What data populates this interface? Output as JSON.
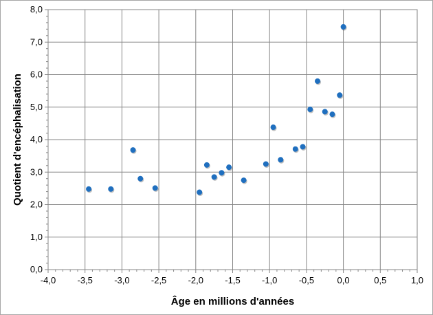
{
  "chart_data": {
    "type": "scatter",
    "title": "",
    "xlabel": "Âge en millions d'années",
    "ylabel": "Quotient d'encéphalisation",
    "xlim": [
      -4.0,
      1.0
    ],
    "ylim": [
      0.0,
      8.0
    ],
    "x_ticks": [
      -4.0,
      -3.5,
      -3.0,
      -2.5,
      -2.0,
      -1.5,
      -1.0,
      -0.5,
      0.0,
      0.5,
      1.0
    ],
    "y_ticks": [
      0.0,
      1.0,
      2.0,
      3.0,
      4.0,
      5.0,
      6.0,
      7.0,
      8.0
    ],
    "x_tick_labels": [
      "-4,0",
      "-3,5",
      "-3,0",
      "-2,5",
      "-2,0",
      "-1,5",
      "-1,0",
      "-0,5",
      "0,0",
      "0,5",
      "1,0"
    ],
    "y_tick_labels": [
      "0,0",
      "1,0",
      "2,0",
      "3,0",
      "4,0",
      "5,0",
      "6,0",
      "7,0",
      "8,0"
    ],
    "grid": true,
    "marker_color": "#1f6fbf",
    "points": [
      {
        "x": -3.45,
        "y": 2.48
      },
      {
        "x": -3.15,
        "y": 2.48
      },
      {
        "x": -2.85,
        "y": 3.68
      },
      {
        "x": -2.75,
        "y": 2.8
      },
      {
        "x": -2.55,
        "y": 2.51
      },
      {
        "x": -1.95,
        "y": 2.38
      },
      {
        "x": -1.85,
        "y": 3.22
      },
      {
        "x": -1.75,
        "y": 2.85
      },
      {
        "x": -1.65,
        "y": 2.98
      },
      {
        "x": -1.55,
        "y": 3.15
      },
      {
        "x": -1.35,
        "y": 2.75
      },
      {
        "x": -1.05,
        "y": 3.25
      },
      {
        "x": -0.95,
        "y": 4.38
      },
      {
        "x": -0.85,
        "y": 3.38
      },
      {
        "x": -0.65,
        "y": 3.71
      },
      {
        "x": -0.55,
        "y": 3.78
      },
      {
        "x": -0.45,
        "y": 4.93
      },
      {
        "x": -0.35,
        "y": 5.8
      },
      {
        "x": -0.25,
        "y": 4.86
      },
      {
        "x": -0.15,
        "y": 4.78
      },
      {
        "x": -0.05,
        "y": 5.37
      },
      {
        "x": 0.0,
        "y": 7.47
      }
    ]
  }
}
